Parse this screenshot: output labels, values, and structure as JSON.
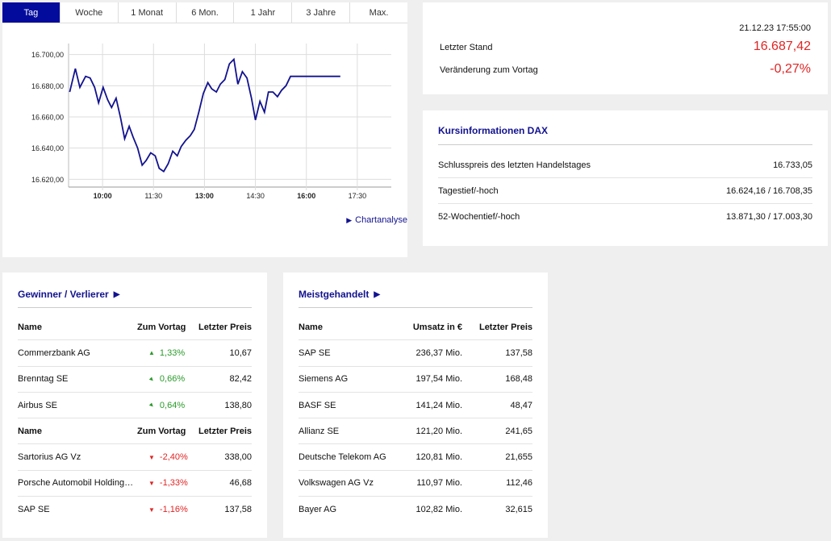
{
  "tabs": [
    {
      "label": "Tag",
      "active": true
    },
    {
      "label": "Woche",
      "active": false
    },
    {
      "label": "1 Monat",
      "active": false
    },
    {
      "label": "6 Mon.",
      "active": false
    },
    {
      "label": "1 Jahr",
      "active": false
    },
    {
      "label": "3 Jahre",
      "active": false
    },
    {
      "label": "Max.",
      "active": false
    }
  ],
  "chart_link": "Chartanalyse",
  "chart_data": {
    "type": "line",
    "color": "#12128f",
    "ylim": [
      16615,
      16705
    ],
    "yticks": [
      "16.700,00",
      "16.680,00",
      "16.660,00",
      "16.640,00",
      "16.620,00"
    ],
    "ytick_values": [
      16700,
      16680,
      16660,
      16640,
      16620
    ],
    "xticks": [
      "10:00",
      "11:30",
      "13:00",
      "14:30",
      "16:00",
      "17:30"
    ],
    "xtick_minutes": [
      600,
      690,
      780,
      870,
      960,
      1050
    ],
    "xtick_bold": [
      true,
      false,
      true,
      false,
      true,
      false
    ],
    "xlim_minutes": [
      540,
      1110
    ],
    "grid": true,
    "series": [
      {
        "x": [
          542,
          552,
          560,
          570,
          578,
          586,
          593,
          601,
          609,
          616,
          624,
          632,
          639,
          647,
          654,
          662,
          670,
          677,
          685,
          693,
          700,
          708,
          716,
          724,
          732,
          739,
          747,
          755,
          762,
          770,
          778,
          786,
          793,
          801,
          808,
          816,
          824,
          832,
          839,
          847,
          855,
          863,
          870,
          878,
          886,
          893,
          901,
          909,
          916,
          924,
          932,
          940,
          947,
          955,
          962,
          970,
          977,
          985,
          993,
          1001,
          1008,
          1020
        ],
        "y": [
          16676,
          16691,
          16679,
          16686,
          16685,
          16679,
          16669,
          16679,
          16671,
          16666,
          16672,
          16659,
          16646,
          16654,
          16647,
          16640,
          16629,
          16632,
          16637,
          16635,
          16627,
          16625,
          16630,
          16638,
          16635,
          16641,
          16645,
          16648,
          16652,
          16663,
          16675,
          16682,
          16678,
          16676,
          16681,
          16684,
          16694,
          16697,
          16681,
          16689,
          16685,
          16672,
          16658,
          16670,
          16663,
          16676,
          16676,
          16673,
          16677,
          16680,
          16686,
          16686,
          16686,
          16686,
          16686,
          16686,
          16686,
          16686,
          16686,
          16686,
          16686,
          16686
        ]
      }
    ]
  },
  "quote": {
    "timestamp": "21.12.23 17:55:00",
    "last_label": "Letzter Stand",
    "last_value": "16.687,42",
    "change_label": "Veränderung zum Vortag",
    "change_value": "-0,27%"
  },
  "info": {
    "title": "Kursinformationen DAX",
    "rows": [
      {
        "label": "Schlusspreis des letzten Handelstages",
        "value": "16.733,05"
      },
      {
        "label": "Tagestief/-hoch",
        "value": "16.624,16 / 16.708,35"
      },
      {
        "label": "52-Wochentief/-hoch",
        "value": "13.871,30 / 17.003,30"
      }
    ]
  },
  "movers": {
    "title": "Gewinner / Verlierer",
    "header": {
      "name": "Name",
      "change": "Zum Vortag",
      "price": "Letzter Preis"
    },
    "gainers": [
      {
        "name": "Commerzbank AG",
        "change": "1,33%",
        "price": "10,67",
        "dir": "up-strong"
      },
      {
        "name": "Brenntag SE",
        "change": "0,66%",
        "price": "82,42",
        "dir": "up"
      },
      {
        "name": "Airbus SE",
        "change": "0,64%",
        "price": "138,80",
        "dir": "up"
      }
    ],
    "losers": [
      {
        "name": "Sartorius AG Vz",
        "change": "-2,40%",
        "price": "338,00",
        "dir": "down"
      },
      {
        "name": "Porsche Automobil Holding…",
        "change": "-1,33%",
        "price": "46,68",
        "dir": "down"
      },
      {
        "name": "SAP SE",
        "change": "-1,16%",
        "price": "137,58",
        "dir": "down"
      }
    ]
  },
  "most_traded": {
    "title": "Meistgehandelt",
    "header": {
      "name": "Name",
      "volume": "Umsatz in €",
      "price": "Letzter Preis"
    },
    "rows": [
      {
        "name": "SAP SE",
        "volume": "236,37 Mio.",
        "price": "137,58"
      },
      {
        "name": "Siemens AG",
        "volume": "197,54 Mio.",
        "price": "168,48"
      },
      {
        "name": "BASF SE",
        "volume": "141,24 Mio.",
        "price": "48,47"
      },
      {
        "name": "Allianz SE",
        "volume": "121,20 Mio.",
        "price": "241,65"
      },
      {
        "name": "Deutsche Telekom AG",
        "volume": "120,81 Mio.",
        "price": "21,655"
      },
      {
        "name": "Volkswagen AG Vz",
        "volume": "110,97 Mio.",
        "price": "112,46"
      },
      {
        "name": "Bayer AG",
        "volume": "102,82 Mio.",
        "price": "32,615"
      }
    ]
  }
}
